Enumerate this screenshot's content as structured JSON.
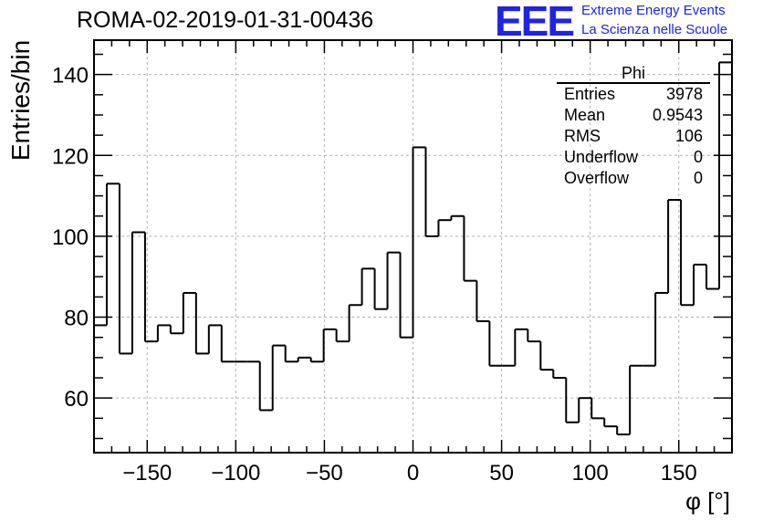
{
  "title": "ROMA-02-2019-01-31-00436",
  "logo": {
    "mark": "EEE",
    "line1": "Extreme Energy Events",
    "line2": "La Scienza nelle Scuole",
    "color": "#1f23e6"
  },
  "stats_box": {
    "title": "Phi",
    "rows": [
      {
        "label": "Entries",
        "value": "3978"
      },
      {
        "label": "Mean",
        "value": "0.9543"
      },
      {
        "label": "RMS",
        "value": "106"
      },
      {
        "label": "Underflow",
        "value": "0"
      },
      {
        "label": "Overflow",
        "value": "0"
      }
    ]
  },
  "chart_data": {
    "type": "histogram",
    "title": "ROMA-02-2019-01-31-00436",
    "xlabel": "φ [°]",
    "ylabel": "Entries/bin",
    "xlim": [
      -180,
      180
    ],
    "ylim": [
      46.5,
      148.5
    ],
    "grid": true,
    "bin_width": 7.2,
    "x_ticks": [
      -150,
      -100,
      -50,
      0,
      50,
      100,
      150
    ],
    "x_tick_labels": [
      "−150",
      "−100",
      "−50",
      "0",
      "50",
      "100",
      "150"
    ],
    "y_ticks": [
      60,
      80,
      100,
      120,
      140
    ],
    "y_tick_labels": [
      "60",
      "80",
      "100",
      "120",
      "140"
    ],
    "values": [
      78,
      113,
      71,
      101,
      74,
      78,
      76,
      86,
      71,
      78,
      69,
      69,
      69,
      57,
      73,
      69,
      70,
      69,
      77,
      74,
      83,
      92,
      82,
      96,
      75,
      122,
      100,
      104,
      105,
      89,
      79,
      68,
      68,
      77,
      74,
      67,
      65,
      54,
      60,
      55,
      53,
      51,
      68,
      68,
      86,
      109,
      83,
      93,
      87,
      143
    ]
  }
}
